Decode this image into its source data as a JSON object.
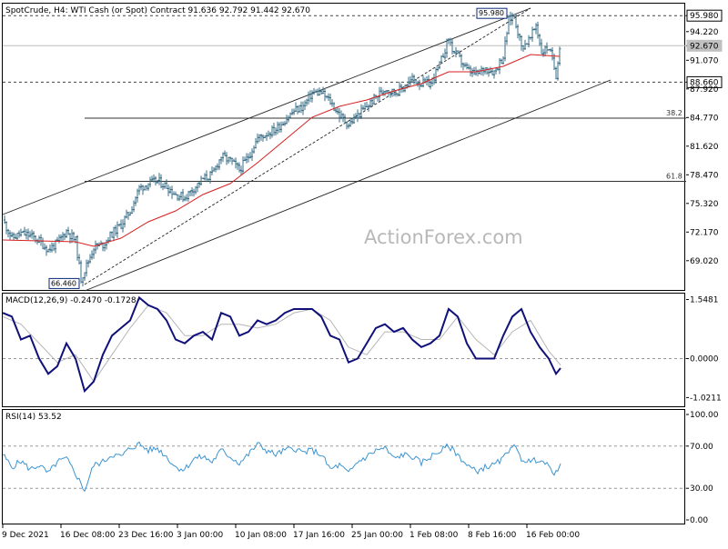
{
  "header": {
    "price_panel": "SpotCrude, H4:  WTI Cash (or Spot) Contract  91.636 92.792 91.442 92.670",
    "macd_panel": "MACD(12,26,9) -0.2470 -0.1728",
    "rsi_panel": "RSI(14) 53.52"
  },
  "watermark": "ActionForex.com",
  "colors": {
    "candles": "#3a6f8a",
    "ma": "#d62020",
    "macd": "#10107a",
    "signal": "#b5b5b5",
    "rsi": "#3d95d0",
    "grid": "#999999",
    "label_box": "#0a2a78"
  },
  "chart_data": [
    {
      "type": "candlestick",
      "symbol": "SpotCrude",
      "timeframe": "H4",
      "title": "WTI Cash (or Spot) Contract",
      "ohlc_last": {
        "open": 91.636,
        "high": 92.792,
        "low": 91.442,
        "close": 92.67
      },
      "y_ticks": [
        "95.980",
        "94.220",
        "92.670",
        "91.070",
        "88.660",
        "87.920",
        "84.770",
        "81.620",
        "78.470",
        "75.320",
        "72.170",
        "69.020"
      ],
      "ylim": [
        65.9,
        97.2
      ],
      "x_ticks": [
        "9 Dec 2021",
        "16 Dec 08:00",
        "23 Dec 16:00",
        "3 Jan 00:00",
        "10 Jan 08:00",
        "17 Jan 16:00",
        "25 Jan 00:00",
        "1 Feb 08:00",
        "8 Feb 16:00",
        "16 Feb 00:00"
      ],
      "price_labels": {
        "swing_high": "95.980",
        "swing_low": "66.460",
        "support": "88.660",
        "current": "92.670"
      },
      "levels": [
        {
          "name": "high-line",
          "value": 95.98
        },
        {
          "name": "current-line",
          "value": 92.67
        },
        {
          "name": "support-line",
          "value": 88.66
        }
      ],
      "fibonacci": [
        {
          "label": "38.2",
          "value": 84.7
        },
        {
          "label": "61.8",
          "value": 77.75
        }
      ],
      "close_path": [
        [
          0,
          73.5
        ],
        [
          10,
          71.5
        ],
        [
          20,
          72.0
        ],
        [
          30,
          71.8
        ],
        [
          40,
          71.2
        ],
        [
          50,
          70.2
        ],
        [
          60,
          71.0
        ],
        [
          70,
          72.3
        ],
        [
          80,
          71.2
        ],
        [
          86,
          67.0
        ],
        [
          92,
          68.5
        ],
        [
          100,
          70.5
        ],
        [
          110,
          70.8
        ],
        [
          120,
          72.0
        ],
        [
          130,
          73.0
        ],
        [
          140,
          74.5
        ],
        [
          150,
          77.0
        ],
        [
          160,
          77.5
        ],
        [
          170,
          77.8
        ],
        [
          180,
          77.2
        ],
        [
          190,
          76.3
        ],
        [
          200,
          76.0
        ],
        [
          210,
          77.0
        ],
        [
          220,
          78.0
        ],
        [
          230,
          78.5
        ],
        [
          240,
          80.5
        ],
        [
          250,
          80.0
        ],
        [
          260,
          79.0
        ],
        [
          270,
          80.5
        ],
        [
          280,
          82.5
        ],
        [
          290,
          83.0
        ],
        [
          300,
          83.5
        ],
        [
          310,
          84.5
        ],
        [
          320,
          85.5
        ],
        [
          330,
          86.0
        ],
        [
          340,
          87.5
        ],
        [
          350,
          87.5
        ],
        [
          360,
          86.5
        ],
        [
          370,
          85.0
        ],
        [
          380,
          84.0
        ],
        [
          390,
          85.0
        ],
        [
          400,
          86.0
        ],
        [
          410,
          87.0
        ],
        [
          420,
          88.0
        ],
        [
          430,
          87.5
        ],
        [
          440,
          88.0
        ],
        [
          450,
          89.0
        ],
        [
          460,
          88.5
        ],
        [
          470,
          88.5
        ],
        [
          480,
          90.5
        ],
        [
          490,
          93.5
        ],
        [
          495,
          92.0
        ],
        [
          500,
          91.5
        ],
        [
          510,
          90.0
        ],
        [
          520,
          89.5
        ],
        [
          530,
          90.2
        ],
        [
          540,
          89.8
        ],
        [
          550,
          91.5
        ],
        [
          556,
          95.5
        ],
        [
          562,
          96.0
        ],
        [
          570,
          92.5
        ],
        [
          580,
          93.5
        ],
        [
          586,
          95.0
        ],
        [
          592,
          92.0
        ],
        [
          600,
          92.5
        ],
        [
          608,
          89.5
        ],
        [
          612,
          92.7
        ]
      ],
      "moving_average": [
        [
          0,
          71.3
        ],
        [
          40,
          71.2
        ],
        [
          80,
          71.1
        ],
        [
          100,
          70.6
        ],
        [
          130,
          71.5
        ],
        [
          160,
          73.3
        ],
        [
          190,
          74.5
        ],
        [
          220,
          76.3
        ],
        [
          250,
          77.5
        ],
        [
          280,
          79.8
        ],
        [
          310,
          82.3
        ],
        [
          340,
          84.8
        ],
        [
          370,
          86.0
        ],
        [
          400,
          86.7
        ],
        [
          430,
          87.7
        ],
        [
          460,
          88.5
        ],
        [
          490,
          89.8
        ],
        [
          520,
          89.8
        ],
        [
          550,
          90.4
        ],
        [
          580,
          91.7
        ],
        [
          612,
          91.5
        ]
      ],
      "channel": {
        "upper": [
          [
            0,
            74.1
          ],
          [
            580,
            96.8
          ]
        ],
        "lower": [
          [
            90,
            65.7
          ],
          [
            668,
            88.9
          ]
        ],
        "median": [
          [
            90,
            66.4
          ],
          [
            580,
            96.8
          ]
        ]
      }
    },
    {
      "type": "line",
      "title": "MACD(12,26,9)",
      "y_ticks": [
        "1.5481",
        "0.0000",
        "-1.0211"
      ],
      "ylim": [
        -1.25,
        1.68
      ],
      "zero_line": 0,
      "series": [
        {
          "name": "MACD",
          "values": [
            [
              0,
              1.2
            ],
            [
              10,
              1.1
            ],
            [
              20,
              0.5
            ],
            [
              30,
              0.6
            ],
            [
              40,
              0.0
            ],
            [
              50,
              -0.4
            ],
            [
              60,
              -0.2
            ],
            [
              70,
              0.4
            ],
            [
              80,
              0.0
            ],
            [
              90,
              -0.85
            ],
            [
              100,
              -0.6
            ],
            [
              110,
              0.1
            ],
            [
              120,
              0.6
            ],
            [
              130,
              0.8
            ],
            [
              140,
              1.0
            ],
            [
              150,
              1.6
            ],
            [
              160,
              1.4
            ],
            [
              170,
              1.3
            ],
            [
              180,
              1.0
            ],
            [
              190,
              0.5
            ],
            [
              200,
              0.4
            ],
            [
              210,
              0.6
            ],
            [
              220,
              0.7
            ],
            [
              230,
              0.5
            ],
            [
              240,
              1.2
            ],
            [
              250,
              1.1
            ],
            [
              260,
              0.6
            ],
            [
              270,
              0.7
            ],
            [
              280,
              1.0
            ],
            [
              290,
              0.9
            ],
            [
              300,
              1.0
            ],
            [
              310,
              1.2
            ],
            [
              320,
              1.3
            ],
            [
              330,
              1.3
            ],
            [
              340,
              1.3
            ],
            [
              350,
              1.1
            ],
            [
              360,
              0.6
            ],
            [
              370,
              0.5
            ],
            [
              380,
              -0.1
            ],
            [
              390,
              0.0
            ],
            [
              400,
              0.4
            ],
            [
              410,
              0.8
            ],
            [
              420,
              0.9
            ],
            [
              430,
              0.7
            ],
            [
              440,
              0.8
            ],
            [
              450,
              0.5
            ],
            [
              460,
              0.3
            ],
            [
              470,
              0.4
            ],
            [
              480,
              0.6
            ],
            [
              490,
              1.3
            ],
            [
              500,
              1.1
            ],
            [
              510,
              0.4
            ],
            [
              520,
              0.0
            ],
            [
              530,
              0.0
            ],
            [
              540,
              0.0
            ],
            [
              550,
              0.6
            ],
            [
              560,
              1.1
            ],
            [
              570,
              1.3
            ],
            [
              580,
              0.7
            ],
            [
              590,
              0.3
            ],
            [
              600,
              0.0
            ],
            [
              608,
              -0.4
            ],
            [
              613,
              -0.25
            ]
          ]
        },
        {
          "name": "Signal",
          "values": [
            [
              0,
              1.1
            ],
            [
              20,
              0.9
            ],
            [
              40,
              0.4
            ],
            [
              60,
              -0.1
            ],
            [
              80,
              0.1
            ],
            [
              100,
              -0.6
            ],
            [
              120,
              0.1
            ],
            [
              140,
              0.8
            ],
            [
              160,
              1.4
            ],
            [
              180,
              1.2
            ],
            [
              200,
              0.6
            ],
            [
              220,
              0.6
            ],
            [
              240,
              0.9
            ],
            [
              260,
              0.9
            ],
            [
              280,
              0.8
            ],
            [
              300,
              0.9
            ],
            [
              320,
              1.2
            ],
            [
              340,
              1.3
            ],
            [
              360,
              1.0
            ],
            [
              380,
              0.3
            ],
            [
              400,
              0.1
            ],
            [
              420,
              0.7
            ],
            [
              440,
              0.7
            ],
            [
              460,
              0.5
            ],
            [
              480,
              0.5
            ],
            [
              500,
              1.1
            ],
            [
              520,
              0.5
            ],
            [
              540,
              0.1
            ],
            [
              560,
              0.7
            ],
            [
              580,
              1.0
            ],
            [
              600,
              0.2
            ],
            [
              613,
              -0.17
            ]
          ]
        }
      ]
    },
    {
      "type": "line",
      "title": "RSI(14)",
      "y_ticks": [
        "100.00",
        "70.00",
        "30.00",
        "0.00"
      ],
      "ylim": [
        0,
        100
      ],
      "levels": [
        70,
        30
      ],
      "series": [
        {
          "name": "RSI",
          "values": [
            [
              0,
              62
            ],
            [
              10,
              50
            ],
            [
              20,
              56
            ],
            [
              30,
              48
            ],
            [
              40,
              52
            ],
            [
              50,
              44
            ],
            [
              60,
              55
            ],
            [
              70,
              58
            ],
            [
              80,
              44
            ],
            [
              90,
              28
            ],
            [
              100,
              52
            ],
            [
              110,
              55
            ],
            [
              120,
              62
            ],
            [
              130,
              60
            ],
            [
              140,
              68
            ],
            [
              150,
              72
            ],
            [
              160,
              66
            ],
            [
              170,
              68
            ],
            [
              180,
              60
            ],
            [
              190,
              50
            ],
            [
              200,
              48
            ],
            [
              210,
              58
            ],
            [
              220,
              60
            ],
            [
              230,
              55
            ],
            [
              240,
              66
            ],
            [
              250,
              60
            ],
            [
              260,
              54
            ],
            [
              270,
              62
            ],
            [
              280,
              72
            ],
            [
              290,
              66
            ],
            [
              300,
              62
            ],
            [
              310,
              66
            ],
            [
              320,
              68
            ],
            [
              330,
              64
            ],
            [
              340,
              66
            ],
            [
              350,
              62
            ],
            [
              360,
              48
            ],
            [
              370,
              52
            ],
            [
              380,
              44
            ],
            [
              390,
              55
            ],
            [
              400,
              60
            ],
            [
              410,
              66
            ],
            [
              420,
              68
            ],
            [
              430,
              58
            ],
            [
              440,
              62
            ],
            [
              450,
              60
            ],
            [
              460,
              54
            ],
            [
              470,
              60
            ],
            [
              480,
              65
            ],
            [
              490,
              70
            ],
            [
              500,
              62
            ],
            [
              510,
              52
            ],
            [
              520,
              46
            ],
            [
              530,
              50
            ],
            [
              540,
              52
            ],
            [
              550,
              58
            ],
            [
              560,
              72
            ],
            [
              570,
              58
            ],
            [
              580,
              55
            ],
            [
              590,
              58
            ],
            [
              600,
              50
            ],
            [
              608,
              44
            ],
            [
              613,
              54
            ]
          ]
        }
      ]
    }
  ]
}
